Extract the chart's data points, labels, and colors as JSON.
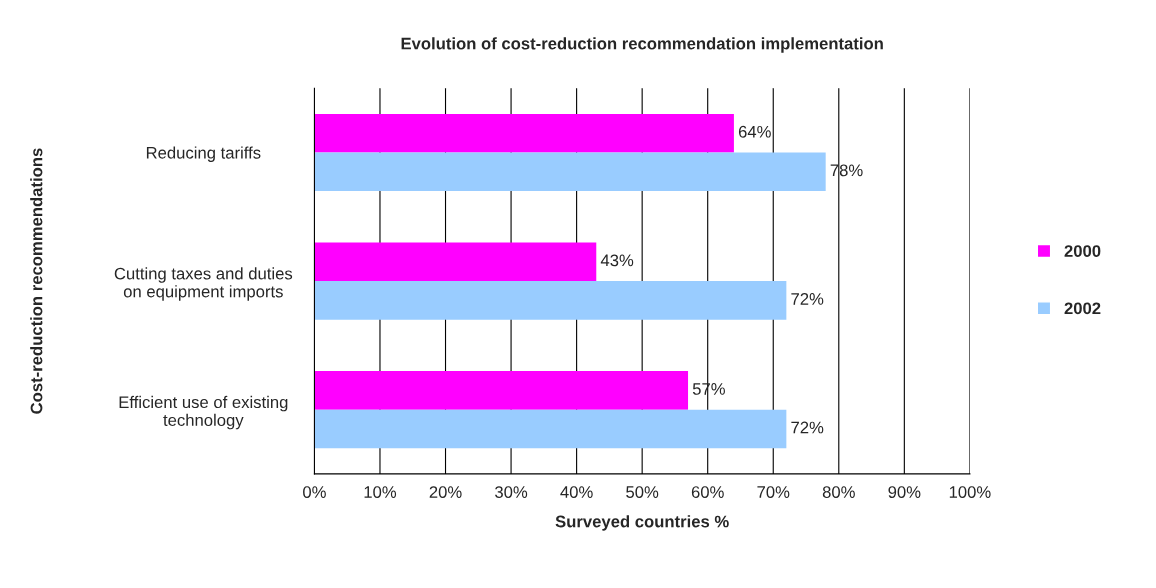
{
  "chart_data": {
    "type": "bar",
    "orientation": "horizontal",
    "title": "Evolution of cost-reduction recommendation implementation",
    "xlabel": "Surveyed countries %",
    "ylabel": "Cost-reduction recommendations",
    "categories": [
      "Reducing tariffs",
      "Cutting taxes and duties\non equipment imports",
      "Efficient use of existing\ntechnology"
    ],
    "series": [
      {
        "name": "2000",
        "color": "#ff00ff",
        "values": [
          64,
          43,
          57
        ],
        "value_labels": [
          "64%",
          "43%",
          "57%"
        ]
      },
      {
        "name": "2002",
        "color": "#99ccff",
        "values": [
          78,
          72,
          72
        ],
        "value_labels": [
          "78%",
          "72%",
          "72%"
        ]
      }
    ],
    "xlim": [
      0,
      100
    ],
    "xticks": [
      {
        "value": 0,
        "label": "0%"
      },
      {
        "value": 10,
        "label": "10%"
      },
      {
        "value": 20,
        "label": "20%"
      },
      {
        "value": 30,
        "label": "30%"
      },
      {
        "value": 40,
        "label": "40%"
      },
      {
        "value": 50,
        "label": "50%"
      },
      {
        "value": 60,
        "label": "60%"
      },
      {
        "value": 70,
        "label": "70%"
      },
      {
        "value": 80,
        "label": "80%"
      },
      {
        "value": 90,
        "label": "90%"
      },
      {
        "value": 100,
        "label": "100%"
      }
    ],
    "grid": "x",
    "legend": "right"
  }
}
